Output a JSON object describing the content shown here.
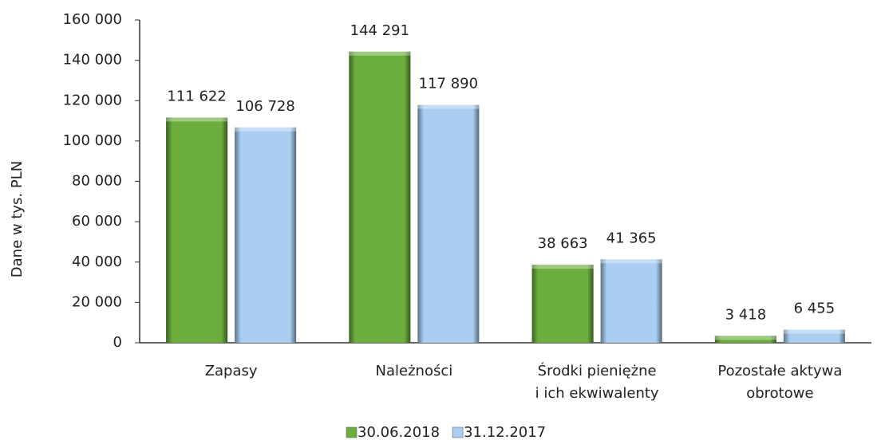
{
  "chart_data": {
    "type": "bar",
    "y_label": "Dane w tys. PLN",
    "categories": [
      "Zapasy",
      "Należności",
      "Środki pieniężne\ni ich ekwiwalenty",
      "Pozostałe aktywa\nobrotowe"
    ],
    "series": [
      {
        "name": "30.06.2018",
        "color": "#6cae3e",
        "values": [
          111622,
          144291,
          38663,
          3418
        ],
        "value_labels": [
          "111 622",
          "144 291",
          "38 663",
          "3 418"
        ]
      },
      {
        "name": "31.12.2017",
        "color": "#a9cef2",
        "values": [
          106728,
          117890,
          41365,
          6455
        ],
        "value_labels": [
          "106 728",
          "117 890",
          "41 365",
          "6 455"
        ]
      }
    ],
    "ylim": [
      0,
      160000
    ],
    "yticks": [
      0,
      {
        "value": 20000,
        "label": "20 000"
      },
      {
        "value": 40000,
        "label": "40 000"
      },
      {
        "value": 60000,
        "label": "60 000"
      },
      {
        "value": 80000,
        "label": "80 000"
      },
      {
        "value": 100000,
        "label": "100 000"
      },
      {
        "value": 120000,
        "label": "120 000"
      },
      {
        "value": 140000,
        "label": "140 000"
      },
      {
        "value": 160000,
        "label": "160 000"
      }
    ],
    "legend": "bottom"
  }
}
